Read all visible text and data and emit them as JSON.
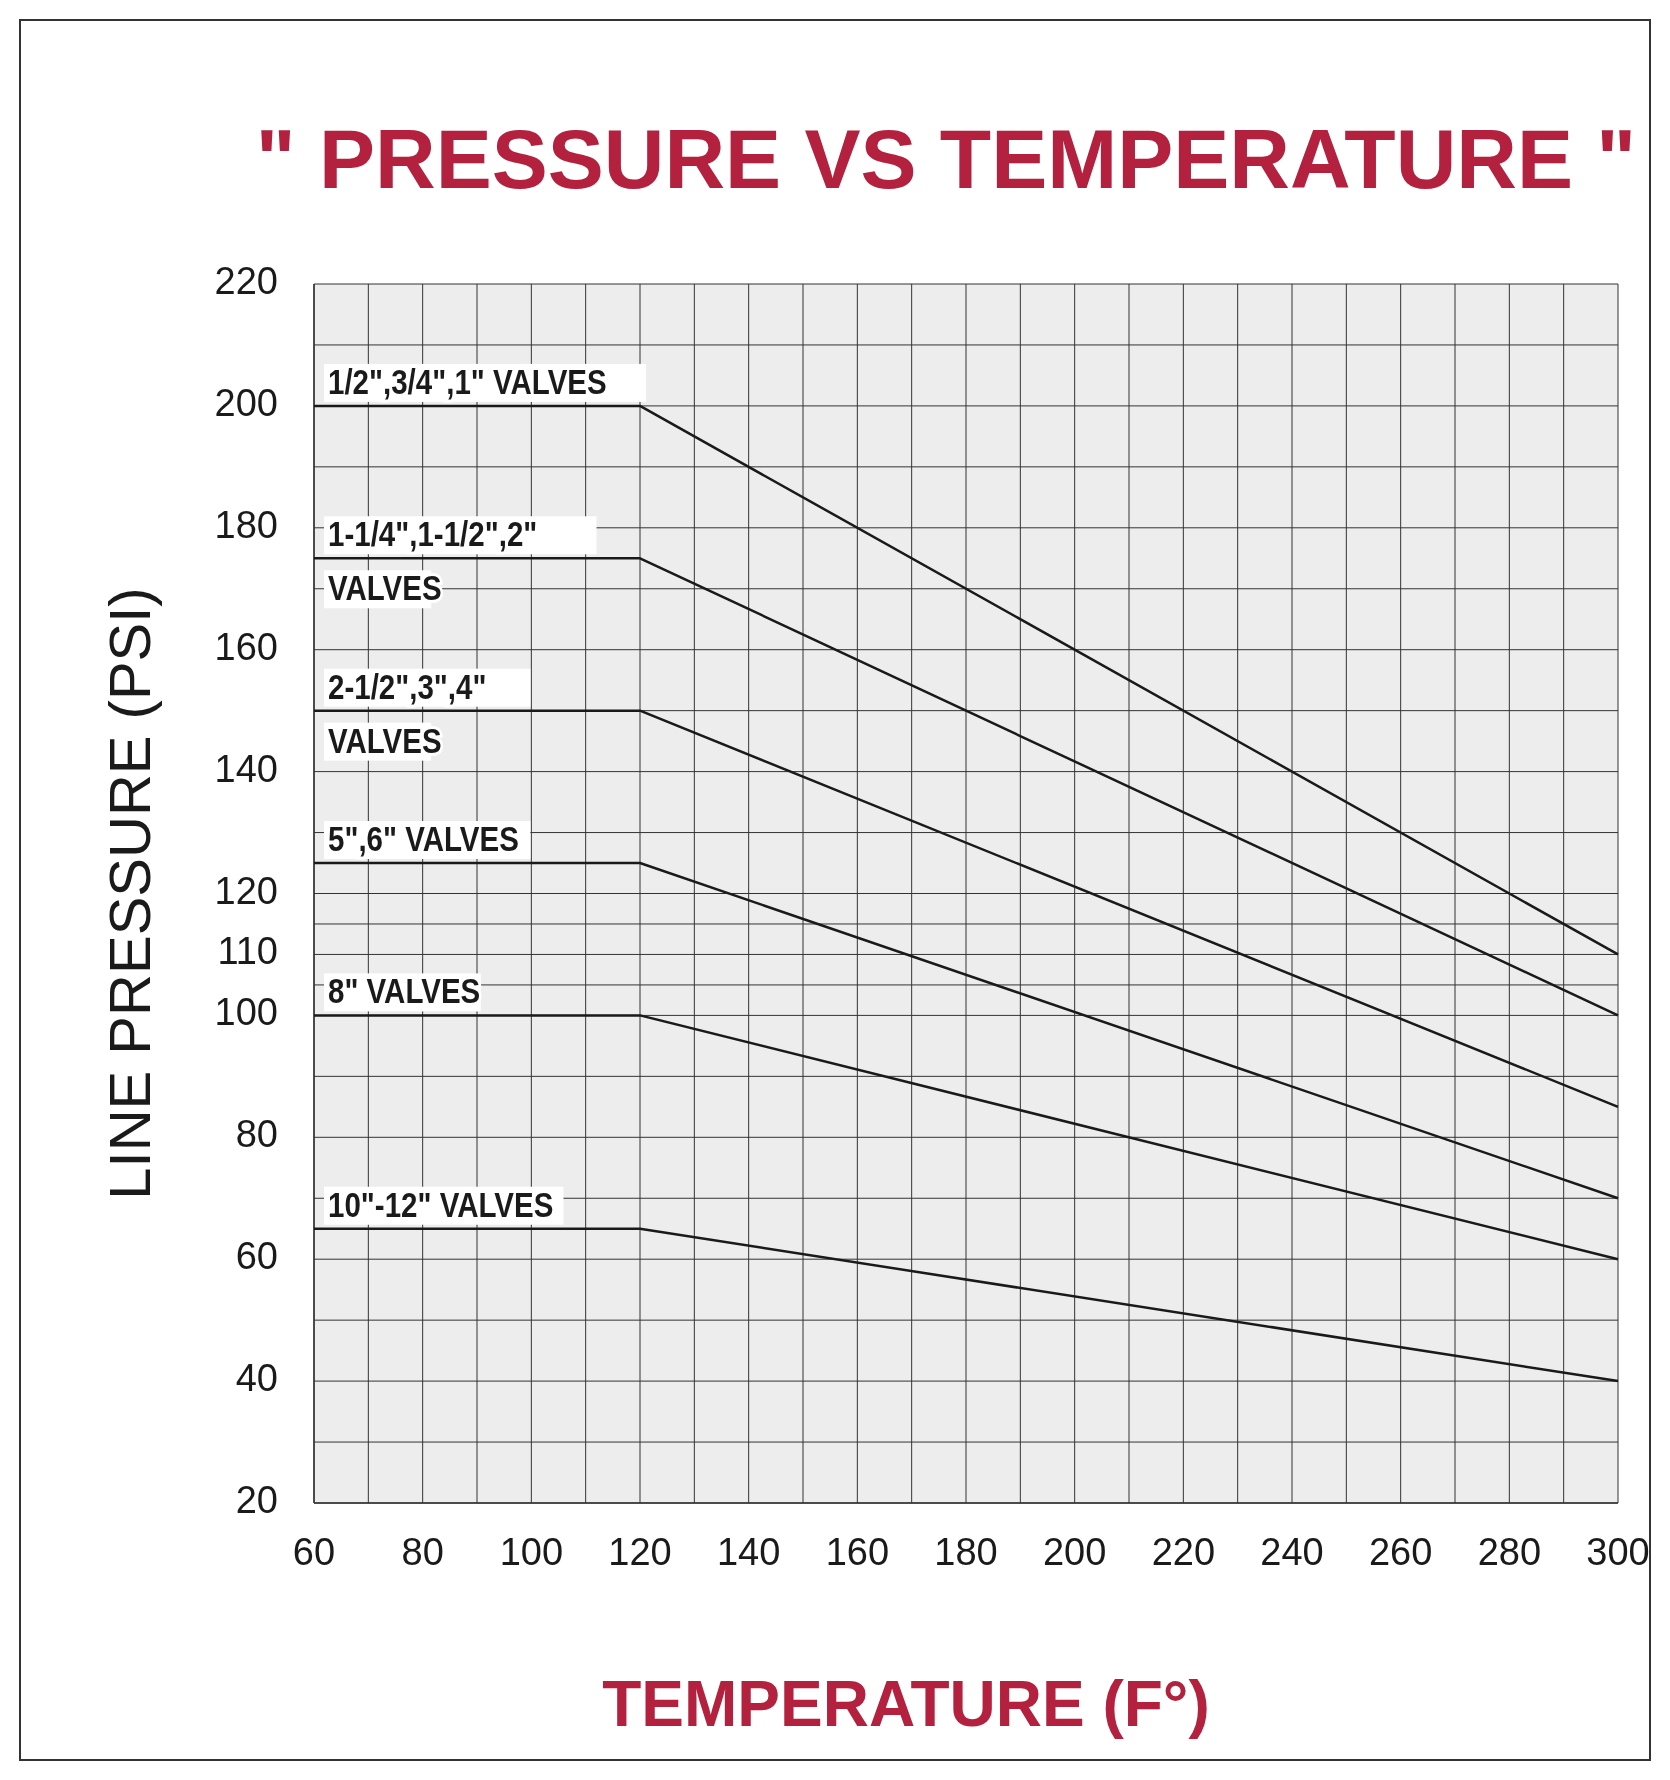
{
  "chart_data": {
    "type": "line",
    "title": "\" PRESSURE VS TEMPERATURE \"",
    "xlabel": "TEMPERATURE (F°)",
    "ylabel": "LINE PRESSURE (PSI)",
    "x": [
      60,
      120,
      300
    ],
    "series": [
      {
        "name": "1/2\",3/4\",1\" VALVES",
        "color": "#1a1a1a",
        "values": [
          200,
          200,
          110
        ]
      },
      {
        "name": "1-1/4\",1-1/2\",2\"\nVALVES",
        "color": "#1a1a1a",
        "values": [
          175,
          175,
          100
        ]
      },
      {
        "name": "2-1/2\",3\",4\"\nVALVES",
        "color": "#1a1a1a",
        "values": [
          150,
          150,
          85
        ]
      },
      {
        "name": "5\",6\" VALVES",
        "color": "#1a1a1a",
        "values": [
          125,
          125,
          70
        ]
      },
      {
        "name": "8\" VALVES",
        "color": "#1a1a1a",
        "values": [
          100,
          100,
          60
        ]
      },
      {
        "name": "10\"-12\" VALVES",
        "color": "#1a1a1a",
        "values": [
          65,
          65,
          40
        ]
      }
    ],
    "xlim": [
      60,
      300
    ],
    "xticks": [
      60,
      80,
      100,
      120,
      140,
      160,
      180,
      200,
      220,
      240,
      260,
      280,
      300
    ],
    "ylim": [
      20,
      220
    ],
    "yticks": [
      20,
      40,
      60,
      80,
      100,
      110,
      120,
      140,
      160,
      180,
      200,
      220
    ],
    "grid": true,
    "marker": "none",
    "line_style": "solid",
    "legend": false
  }
}
